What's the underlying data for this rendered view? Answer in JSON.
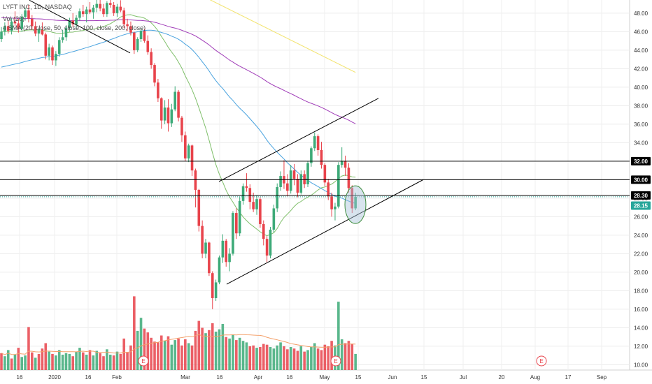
{
  "header": {
    "title": "LYFT INC, 1D, NASDAQ",
    "volume_label": "Vol (20)",
    "sma_label": "4 SMA (20, close, 50, close, 100, close, 200, close)"
  },
  "colors": {
    "up": "#26a69a",
    "up_fill": "#3daa78",
    "down": "#e8434b",
    "sma20": "#7fbf6a",
    "sma50": "#4aa3df",
    "sma100": "#a03cb8",
    "sma200": "#f2e36a",
    "vol_ma": "#f4a06a",
    "trendline": "#000000",
    "badge_price": "#26a69a",
    "badge_level": "#000000",
    "earnings": "#e8434b",
    "circle_fill": "#a9c4da",
    "circle_stroke": "#3a8a3a"
  },
  "chart_data": {
    "type": "candlestick",
    "title": "LYFT INC, 1D, NASDAQ",
    "y_ticks": [
      "48.00",
      "46.00",
      "44.00",
      "42.00",
      "40.00",
      "38.00",
      "36.00",
      "34.00",
      "32.00",
      "30.00",
      "28.00",
      "26.00",
      "24.00",
      "22.00",
      "20.00",
      "18.00",
      "16.00",
      "14.00",
      "12.00",
      "10.00"
    ],
    "ylim": [
      9.5,
      49.5
    ],
    "x_ticks": [
      "16",
      "2020",
      "16",
      "Feb",
      "Mar",
      "16",
      "Apr",
      "16",
      "May",
      "15",
      "Jun",
      "15",
      "Jul",
      "20",
      "Aug",
      "17",
      "Sep"
    ],
    "price_badges": [
      "32.00",
      "30.00",
      "28.30",
      "28.15"
    ],
    "horizontal_levels": [
      32.0,
      30.0,
      28.3
    ],
    "last_price": 28.15,
    "earnings_marker": "E",
    "series": [
      {
        "name": "Vol (20)",
        "type": "volume"
      },
      {
        "name": "SMA 20",
        "type": "line"
      },
      {
        "name": "SMA 50",
        "type": "line"
      },
      {
        "name": "SMA 100",
        "type": "line"
      },
      {
        "name": "SMA 200",
        "type": "line"
      }
    ],
    "candles": [
      [
        45.2,
        46.5,
        44.9,
        46.0
      ],
      [
        46.0,
        47.0,
        45.6,
        46.6
      ],
      [
        46.6,
        47.2,
        45.8,
        46.1
      ],
      [
        46.1,
        47.5,
        45.7,
        47.1
      ],
      [
        47.1,
        48.2,
        46.6,
        46.9
      ],
      [
        46.9,
        47.4,
        45.9,
        46.3
      ],
      [
        46.3,
        47.9,
        46.0,
        47.6
      ],
      [
        47.6,
        48.6,
        47.2,
        48.3
      ],
      [
        48.3,
        48.9,
        47.0,
        47.4
      ],
      [
        47.4,
        47.8,
        46.2,
        46.6
      ],
      [
        46.6,
        47.1,
        45.5,
        45.8
      ],
      [
        45.8,
        46.4,
        44.9,
        46.2
      ],
      [
        46.2,
        47.0,
        45.6,
        45.7
      ],
      [
        45.7,
        45.9,
        43.0,
        43.4
      ],
      [
        43.4,
        44.7,
        42.9,
        44.3
      ],
      [
        44.3,
        44.5,
        42.4,
        42.9
      ],
      [
        42.9,
        43.9,
        42.3,
        43.6
      ],
      [
        43.6,
        45.4,
        43.3,
        45.1
      ],
      [
        45.1,
        46.2,
        44.8,
        45.4
      ],
      [
        45.4,
        46.7,
        45.0,
        46.4
      ],
      [
        46.4,
        47.5,
        46.0,
        47.2
      ],
      [
        47.2,
        48.0,
        46.5,
        46.8
      ],
      [
        46.8,
        47.8,
        46.3,
        47.5
      ],
      [
        47.5,
        48.5,
        47.2,
        48.2
      ],
      [
        48.2,
        48.9,
        47.6,
        47.9
      ],
      [
        47.9,
        48.7,
        47.0,
        48.4
      ],
      [
        48.4,
        49.2,
        47.9,
        48.1
      ],
      [
        48.1,
        48.9,
        47.4,
        48.6
      ],
      [
        48.6,
        49.5,
        48.1,
        49.0
      ],
      [
        49.0,
        49.6,
        48.2,
        48.5
      ],
      [
        48.5,
        49.0,
        47.6,
        47.9
      ],
      [
        47.9,
        49.3,
        47.6,
        49.1
      ],
      [
        49.1,
        49.6,
        48.6,
        48.9
      ],
      [
        48.9,
        49.2,
        47.7,
        48.0
      ],
      [
        48.0,
        49.0,
        47.6,
        48.7
      ],
      [
        48.7,
        49.4,
        48.1,
        48.3
      ],
      [
        48.3,
        48.6,
        46.4,
        46.8
      ],
      [
        46.8,
        47.4,
        46.1,
        46.6
      ],
      [
        46.6,
        47.1,
        45.6,
        45.9
      ],
      [
        45.9,
        46.0,
        43.6,
        44.0
      ],
      [
        44.0,
        45.4,
        43.8,
        45.2
      ],
      [
        45.2,
        46.4,
        44.9,
        46.1
      ],
      [
        46.1,
        46.3,
        44.8,
        45.0
      ],
      [
        45.0,
        45.6,
        43.5,
        43.8
      ],
      [
        43.8,
        44.2,
        42.0,
        42.4
      ],
      [
        42.4,
        42.6,
        40.1,
        40.5
      ],
      [
        40.5,
        40.9,
        38.4,
        38.8
      ],
      [
        38.8,
        38.9,
        35.5,
        36.4
      ],
      [
        36.4,
        38.6,
        36.0,
        37.8
      ],
      [
        37.8,
        38.7,
        35.2,
        36.1
      ],
      [
        36.1,
        38.2,
        35.7,
        37.6
      ],
      [
        37.6,
        40.1,
        37.4,
        39.5
      ],
      [
        39.5,
        39.7,
        36.3,
        36.7
      ],
      [
        36.7,
        36.9,
        34.1,
        34.8
      ],
      [
        34.8,
        35.2,
        32.0,
        32.3
      ],
      [
        32.3,
        33.9,
        31.9,
        33.7
      ],
      [
        33.7,
        33.8,
        30.4,
        31.0
      ],
      [
        31.0,
        31.2,
        27.0,
        28.9
      ],
      [
        28.9,
        29.0,
        24.4,
        25.0
      ],
      [
        25.0,
        25.6,
        21.5,
        22.0
      ],
      [
        22.0,
        23.6,
        21.5,
        23.2
      ],
      [
        23.2,
        23.3,
        19.6,
        19.9
      ],
      [
        19.9,
        20.1,
        16.0,
        17.2
      ],
      [
        17.2,
        19.2,
        16.9,
        18.9
      ],
      [
        18.9,
        21.8,
        18.7,
        21.6
      ],
      [
        21.6,
        24.1,
        21.0,
        23.4
      ],
      [
        23.4,
        23.6,
        20.6,
        21.1
      ],
      [
        21.1,
        22.6,
        20.1,
        22.0
      ],
      [
        22.0,
        26.6,
        21.8,
        26.4
      ],
      [
        26.4,
        26.9,
        23.6,
        24.2
      ],
      [
        24.2,
        28.1,
        23.9,
        27.7
      ],
      [
        27.7,
        29.6,
        27.3,
        29.3
      ],
      [
        29.3,
        30.7,
        28.7,
        29.1
      ],
      [
        29.1,
        29.5,
        26.8,
        27.6
      ],
      [
        27.6,
        28.6,
        26.5,
        26.8
      ],
      [
        26.8,
        28.3,
        26.2,
        27.9
      ],
      [
        27.9,
        28.1,
        24.8,
        25.2
      ],
      [
        25.2,
        25.6,
        22.9,
        23.6
      ],
      [
        23.6,
        23.9,
        21.1,
        21.8
      ],
      [
        21.8,
        24.9,
        21.5,
        24.6
      ],
      [
        24.6,
        27.3,
        24.3,
        26.9
      ],
      [
        26.9,
        29.6,
        26.5,
        29.2
      ],
      [
        29.2,
        30.9,
        28.8,
        30.4
      ],
      [
        30.4,
        32.1,
        29.0,
        29.6
      ],
      [
        29.6,
        30.6,
        28.2,
        28.8
      ],
      [
        28.8,
        31.6,
        28.5,
        31.0
      ],
      [
        31.0,
        31.7,
        29.4,
        30.1
      ],
      [
        30.1,
        30.6,
        28.1,
        28.6
      ],
      [
        28.6,
        31.0,
        28.4,
        30.6
      ],
      [
        30.6,
        31.0,
        29.1,
        29.5
      ],
      [
        29.5,
        32.0,
        29.2,
        31.8
      ],
      [
        31.8,
        33.6,
        31.4,
        33.4
      ],
      [
        33.4,
        35.1,
        33.1,
        34.7
      ],
      [
        34.7,
        34.9,
        32.6,
        33.2
      ],
      [
        33.2,
        34.1,
        31.2,
        31.6
      ],
      [
        31.6,
        31.8,
        29.3,
        29.7
      ],
      [
        29.7,
        30.1,
        27.8,
        28.2
      ],
      [
        28.2,
        28.6,
        26.0,
        26.8
      ],
      [
        26.8,
        27.5,
        25.6,
        27.1
      ],
      [
        27.1,
        31.9,
        26.9,
        31.6
      ],
      [
        31.6,
        33.5,
        31.3,
        32.0
      ],
      [
        32.0,
        32.6,
        30.4,
        31.3
      ],
      [
        31.3,
        31.8,
        28.6,
        29.1
      ],
      [
        29.1,
        29.4,
        26.4,
        26.9
      ],
      [
        26.9,
        28.6,
        26.7,
        28.15
      ]
    ],
    "volumes": [
      [
        2.2,
        0
      ],
      [
        1.8,
        1
      ],
      [
        2.6,
        1
      ],
      [
        1.5,
        0
      ],
      [
        2.0,
        1
      ],
      [
        2.9,
        0
      ],
      [
        1.7,
        1
      ],
      [
        1.9,
        1
      ],
      [
        5.6,
        0
      ],
      [
        2.3,
        0
      ],
      [
        1.6,
        1
      ],
      [
        2.1,
        0
      ],
      [
        2.8,
        0
      ],
      [
        3.5,
        0
      ],
      [
        2.4,
        1
      ],
      [
        2.1,
        0
      ],
      [
        1.9,
        1
      ],
      [
        2.6,
        1
      ],
      [
        2.0,
        1
      ],
      [
        2.2,
        1
      ],
      [
        2.1,
        1
      ],
      [
        1.8,
        0
      ],
      [
        2.4,
        1
      ],
      [
        2.9,
        1
      ],
      [
        2.3,
        0
      ],
      [
        2.0,
        1
      ],
      [
        2.6,
        0
      ],
      [
        1.9,
        1
      ],
      [
        2.5,
        1
      ],
      [
        2.2,
        0
      ],
      [
        1.8,
        0
      ],
      [
        2.7,
        1
      ],
      [
        2.0,
        1
      ],
      [
        1.9,
        0
      ],
      [
        2.4,
        1
      ],
      [
        2.1,
        0
      ],
      [
        4.1,
        0
      ],
      [
        2.3,
        0
      ],
      [
        3.2,
        0
      ],
      [
        9.6,
        0
      ],
      [
        5.1,
        1
      ],
      [
        6.8,
        1
      ],
      [
        5.4,
        0
      ],
      [
        4.9,
        0
      ],
      [
        4.2,
        0
      ],
      [
        3.7,
        0
      ],
      [
        3.6,
        0
      ],
      [
        4.5,
        0
      ],
      [
        3.8,
        1
      ],
      [
        4.4,
        0
      ],
      [
        3.3,
        1
      ],
      [
        3.9,
        1
      ],
      [
        4.1,
        0
      ],
      [
        3.2,
        0
      ],
      [
        4.0,
        0
      ],
      [
        3.5,
        1
      ],
      [
        3.2,
        0
      ],
      [
        5.1,
        0
      ],
      [
        6.4,
        0
      ],
      [
        5.5,
        0
      ],
      [
        4.8,
        1
      ],
      [
        5.2,
        0
      ],
      [
        6.1,
        0
      ],
      [
        5.0,
        1
      ],
      [
        5.3,
        1
      ],
      [
        6.0,
        1
      ],
      [
        4.3,
        0
      ],
      [
        4.1,
        1
      ],
      [
        4.6,
        1
      ],
      [
        3.9,
        0
      ],
      [
        4.2,
        1
      ],
      [
        3.8,
        1
      ],
      [
        3.6,
        1
      ],
      [
        3.1,
        0
      ],
      [
        3.2,
        0
      ],
      [
        2.9,
        1
      ],
      [
        3.0,
        0
      ],
      [
        3.4,
        0
      ],
      [
        3.3,
        0
      ],
      [
        3.0,
        1
      ],
      [
        2.8,
        1
      ],
      [
        3.2,
        1
      ],
      [
        3.6,
        1
      ],
      [
        3.1,
        0
      ],
      [
        2.7,
        0
      ],
      [
        3.0,
        1
      ],
      [
        2.8,
        0
      ],
      [
        2.5,
        0
      ],
      [
        3.1,
        1
      ],
      [
        2.4,
        0
      ],
      [
        2.6,
        1
      ],
      [
        3.0,
        1
      ],
      [
        3.5,
        1
      ],
      [
        2.8,
        0
      ],
      [
        2.6,
        0
      ],
      [
        3.3,
        0
      ],
      [
        3.1,
        0
      ],
      [
        3.8,
        0
      ],
      [
        3.2,
        1
      ],
      [
        8.9,
        1
      ],
      [
        4.0,
        1
      ],
      [
        3.5,
        0
      ],
      [
        3.8,
        0
      ],
      [
        3.4,
        0
      ],
      [
        2.1,
        1
      ]
    ],
    "earnings_markers_count": 3
  }
}
